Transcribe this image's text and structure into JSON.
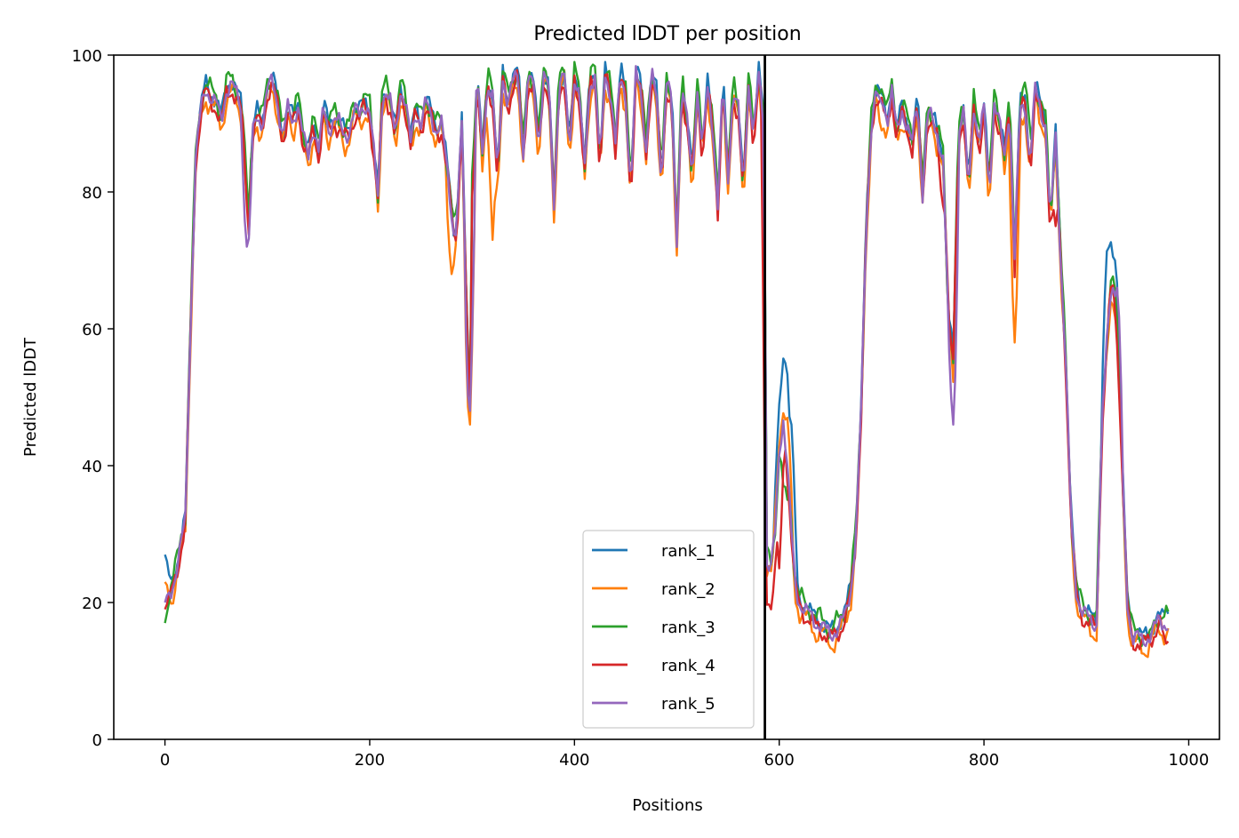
{
  "chart_data": {
    "type": "line",
    "title": "Predicted lDDT per position",
    "xlabel": "Positions",
    "ylabel": "Predicted lDDT",
    "xlim": [
      -50,
      1030
    ],
    "ylim": [
      0,
      100
    ],
    "xticks": [
      0,
      200,
      400,
      600,
      800,
      1000
    ],
    "yticks": [
      0,
      20,
      40,
      60,
      80,
      100
    ],
    "grid": false,
    "legend_position": "lower-right",
    "separator_x": 586,
    "colors": {
      "rank_1": "#1f77b4",
      "rank_2": "#ff7f0e",
      "rank_3": "#2ca02c",
      "rank_4": "#d62728",
      "rank_5": "#9467bd",
      "separator": "#000000"
    },
    "base_profile": {
      "x": [
        0,
        5,
        10,
        15,
        20,
        25,
        30,
        35,
        40,
        45,
        50,
        55,
        60,
        65,
        70,
        75,
        80,
        82,
        85,
        90,
        95,
        100,
        105,
        110,
        115,
        120,
        125,
        130,
        135,
        140,
        145,
        150,
        155,
        160,
        165,
        170,
        175,
        180,
        185,
        190,
        195,
        200,
        205,
        208,
        212,
        215,
        220,
        225,
        230,
        235,
        240,
        245,
        250,
        255,
        260,
        265,
        270,
        275,
        280,
        283,
        286,
        290,
        295,
        298,
        300,
        305,
        310,
        315,
        320,
        325,
        330,
        335,
        340,
        345,
        350,
        355,
        360,
        365,
        370,
        375,
        380,
        385,
        390,
        395,
        400,
        405,
        410,
        415,
        420,
        425,
        430,
        435,
        440,
        445,
        450,
        455,
        460,
        465,
        470,
        475,
        480,
        485,
        490,
        495,
        500,
        505,
        510,
        515,
        520,
        525,
        530,
        535,
        540,
        545,
        550,
        555,
        560,
        565,
        570,
        575,
        580,
        585,
        588,
        592,
        596,
        600,
        604,
        608,
        612,
        616,
        620,
        625,
        630,
        635,
        640,
        645,
        650,
        655,
        660,
        665,
        670,
        675,
        680,
        685,
        690,
        695,
        700,
        705,
        710,
        715,
        720,
        725,
        730,
        735,
        740,
        745,
        750,
        755,
        760,
        765,
        770,
        775,
        780,
        785,
        790,
        795,
        800,
        805,
        810,
        815,
        820,
        825,
        830,
        835,
        840,
        845,
        850,
        855,
        860,
        865,
        870,
        875,
        880,
        885,
        890,
        895,
        900,
        905,
        910,
        915,
        920,
        925,
        930,
        935,
        940,
        945,
        950,
        955,
        960,
        965,
        970,
        975,
        980
      ],
      "y": [
        23,
        21,
        24,
        28,
        32,
        60,
        85,
        92,
        95,
        94,
        93,
        90,
        95,
        96,
        94,
        92,
        80,
        75,
        88,
        91,
        90,
        95,
        96,
        93,
        88,
        92,
        90,
        93,
        88,
        85,
        90,
        86,
        92,
        89,
        91,
        90,
        88,
        89,
        92,
        91,
        93,
        92,
        84,
        79,
        93,
        95,
        93,
        88,
        95,
        93,
        87,
        92,
        90,
        93,
        91,
        89,
        90,
        84,
        77,
        73,
        78,
        90,
        60,
        48,
        80,
        97,
        85,
        96,
        94,
        82,
        97,
        93,
        96,
        97,
        86,
        97,
        95,
        87,
        97,
        95,
        78,
        96,
        97,
        86,
        97,
        94,
        83,
        96,
        97,
        84,
        97,
        95,
        87,
        97,
        94,
        80,
        97,
        95,
        86,
        97,
        94,
        82,
        96,
        93,
        73,
        96,
        90,
        82,
        95,
        86,
        95,
        90,
        78,
        96,
        82,
        95,
        92,
        80,
        96,
        88,
        97,
        90,
        26,
        25,
        30,
        42,
        47,
        40,
        30,
        22,
        20,
        19,
        18,
        17,
        17,
        16,
        15,
        16,
        17,
        18,
        22,
        30,
        48,
        75,
        90,
        95,
        93,
        90,
        95,
        88,
        92,
        90,
        87,
        93,
        80,
        92,
        90,
        88,
        85,
        62,
        55,
        88,
        92,
        80,
        93,
        87,
        92,
        80,
        93,
        90,
        85,
        93,
        70,
        92,
        93,
        84,
        95,
        92,
        90,
        75,
        88,
        70,
        55,
        32,
        22,
        19,
        18,
        17,
        17,
        45,
        58,
        68,
        60,
        40,
        20,
        15,
        15,
        14,
        15,
        16,
        17,
        17,
        17
      ]
    },
    "series": [
      {
        "name": "rank_1",
        "color_key": "rank_1",
        "offset": 0.6,
        "wiggle": 1.2
      },
      {
        "name": "rank_2",
        "color_key": "rank_2",
        "offset": -1.2,
        "wiggle": 1.4
      },
      {
        "name": "rank_3",
        "color_key": "rank_3",
        "offset": 0.9,
        "wiggle": 1.1
      },
      {
        "name": "rank_4",
        "color_key": "rank_4",
        "offset": -0.6,
        "wiggle": 1.3
      },
      {
        "name": "rank_5",
        "color_key": "rank_5",
        "offset": 0.0,
        "wiggle": 1.0
      }
    ],
    "series_variants": [
      {
        "name": "rank_1",
        "points": [
          [
            0,
            27
          ],
          [
            600,
            46
          ],
          [
            604,
            55
          ],
          [
            608,
            57
          ],
          [
            612,
            46
          ],
          [
            920,
            70
          ],
          [
            924,
            74
          ],
          [
            928,
            70
          ],
          [
            978,
            19
          ]
        ]
      },
      {
        "name": "rank_2",
        "points": [
          [
            0,
            23
          ],
          [
            280,
            68
          ],
          [
            298,
            46
          ],
          [
            320,
            73
          ],
          [
            600,
            40
          ],
          [
            604,
            48
          ],
          [
            608,
            47
          ],
          [
            700,
            89
          ],
          [
            830,
            58
          ]
        ]
      },
      {
        "name": "rank_3",
        "points": [
          [
            0,
            17
          ],
          [
            604,
            38
          ],
          [
            608,
            35
          ],
          [
            700,
            95
          ],
          [
            840,
            96
          ],
          [
            960,
            15
          ]
        ]
      },
      {
        "name": "rank_4",
        "points": [
          [
            0,
            19
          ],
          [
            588,
            20
          ],
          [
            592,
            19
          ],
          [
            600,
            25
          ],
          [
            760,
            78
          ],
          [
            870,
            75
          ],
          [
            978,
            14
          ]
        ]
      },
      {
        "name": "rank_5",
        "points": [
          [
            0,
            20
          ],
          [
            80,
            72
          ],
          [
            298,
            48
          ],
          [
            700,
            93
          ],
          [
            770,
            46
          ],
          [
            930,
            66
          ]
        ]
      }
    ]
  }
}
